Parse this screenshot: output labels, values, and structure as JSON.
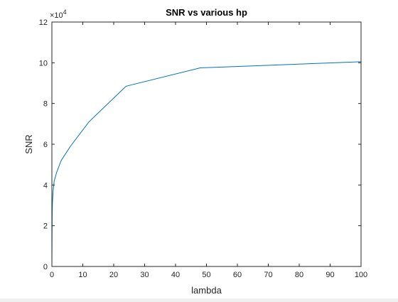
{
  "chart_data": {
    "type": "line",
    "title": "SNR vs various hp",
    "xlabel": "lambda",
    "ylabel": "SNR",
    "xlim": [
      0,
      100
    ],
    "ylim": [
      0,
      12
    ],
    "x_ticks": [
      "0",
      "10",
      "20",
      "30",
      "40",
      "50",
      "60",
      "70",
      "80",
      "90",
      "100"
    ],
    "y_ticks": [
      "0",
      "2",
      "4",
      "6",
      "8",
      "10",
      "12"
    ],
    "y_exponent_base": "×10",
    "y_exponent_power": "4",
    "grid": false,
    "box": true,
    "line_color": "#0072bd",
    "series": [
      {
        "x": [
          0,
          0.1,
          0.2,
          0.4,
          0.75,
          1.5,
          3,
          6,
          12,
          24,
          48,
          100
        ],
        "y": [
          0,
          2.7,
          3.2,
          3.7,
          4.2,
          4.6,
          5.2,
          5.9,
          7.1,
          8.85,
          9.75,
          10.05
        ]
      }
    ]
  }
}
